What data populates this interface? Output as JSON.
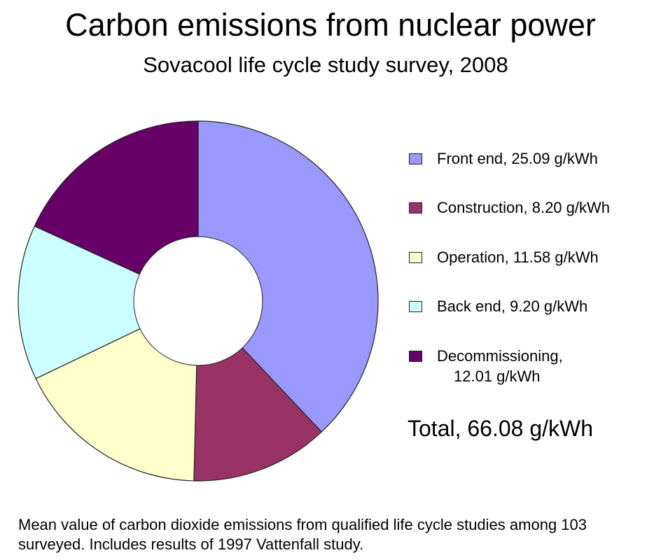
{
  "header": {
    "title": "Carbon emissions from nuclear power",
    "subtitle": "Sovacool life cycle study survey, 2008"
  },
  "chart_data": {
    "type": "pie",
    "donut": true,
    "unit": "g/kWh",
    "title": "Carbon emissions from nuclear power",
    "subtitle": "Sovacool life cycle study survey, 2008",
    "legend_position": "right",
    "slices": [
      {
        "label": "Front end, 25.09 g/kWh",
        "name": "Front end",
        "value": 25.09,
        "color": "#9999FF"
      },
      {
        "label": "Construction, 8.20 g/kWh",
        "name": "Construction",
        "value": 8.2,
        "color": "#993366"
      },
      {
        "label": "Operation, 11.58 g/kWh",
        "name": "Operation",
        "value": 11.58,
        "color": "#FFFFCC"
      },
      {
        "label": "Back end, 9.20 g/kWh",
        "name": "Back end",
        "value": 9.2,
        "color": "#CCFFFF"
      },
      {
        "label": "Decommissioning,\n12.01 g/kWh",
        "name": "Decommissioning",
        "value": 12.01,
        "color": "#660066"
      }
    ],
    "total_label": "Total, 66.08 g/kWh",
    "total": 66.08
  },
  "footnote": "Mean value of carbon dioxide emissions from qualified life cycle studies among 103 surveyed. Includes results of 1997 Vattenfall study."
}
